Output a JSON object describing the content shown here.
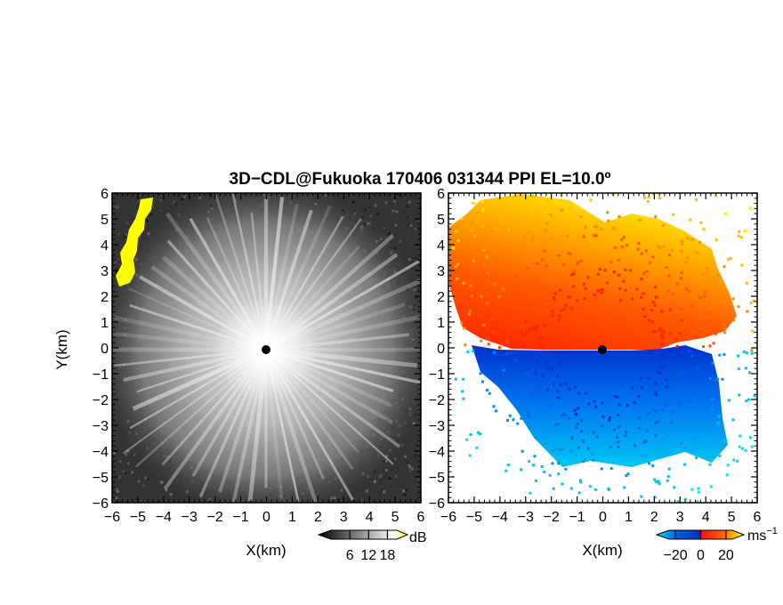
{
  "title": "3D−CDL@Fukuoka 170406 031344 PPI EL=10.0º",
  "chart_data": [
    {
      "type": "heatmap",
      "panel": "left",
      "quantity": "",
      "xlabel": "X(km)",
      "ylabel": "Y(km)",
      "xlim": [
        -6,
        6
      ],
      "ylim": [
        -6,
        6
      ],
      "x_ticks": [
        "−6",
        "−5",
        "−4",
        "−3",
        "−2",
        "−1",
        "0",
        "1",
        "2",
        "3",
        "4",
        "5",
        "6"
      ],
      "y_ticks": [
        "−6",
        "−5",
        "−4",
        "−3",
        "−2",
        "−1",
        "0",
        "1",
        "2",
        "3",
        "4",
        "5",
        "6"
      ],
      "colorbar": {
        "unit": "dB",
        "tick_labels": [
          "6",
          "12",
          "18"
        ],
        "tick_values": [
          6,
          12,
          18
        ],
        "range": [
          0,
          21
        ],
        "colors": [
          "#000000",
          "#ffffff",
          "#ffff00"
        ]
      },
      "features": [
        {
          "label": "",
          "x_range": [
            -6,
            -4.4
          ],
          "y_range": [
            2.5,
            5.9
          ],
          "value": "saturated",
          "color": "#ffff00"
        }
      ],
      "center_marker": {
        "x": 0,
        "y": 0,
        "color": "#555555"
      },
      "grid": false
    },
    {
      "type": "heatmap",
      "panel": "right",
      "quantity": "",
      "xlabel": "X(km)",
      "ylabel": "",
      "xlim": [
        -6,
        6
      ],
      "ylim": [
        -6,
        6
      ],
      "x_ticks": [
        "−6",
        "−5",
        "−4",
        "−3",
        "−2",
        "−1",
        "0",
        "1",
        "2",
        "3",
        "4",
        "5",
        "6"
      ],
      "y_ticks": [
        "−6",
        "−5",
        "−4",
        "−3",
        "−2",
        "−1",
        "0",
        "1",
        "2",
        "3",
        "4",
        "5",
        "6"
      ],
      "colorbar": {
        "unit": "ms−1",
        "tick_labels": [
          "−20",
          "0",
          "20"
        ],
        "tick_values": [
          -20,
          0,
          20
        ],
        "range": [
          -25,
          25
        ],
        "colors": [
          "#00e8f0",
          "#0060e0",
          "#0030c0",
          "#ff1010",
          "#ff6000",
          "#ffcc00",
          "#ffff40"
        ]
      },
      "regions": [
        {
          "label": "",
          "y_range": [
            0,
            6
          ],
          "value_range": [
            5,
            25
          ]
        },
        {
          "label": "",
          "y_range": [
            -5.2,
            0
          ],
          "value_range": [
            -25,
            -5
          ]
        }
      ],
      "center_marker": {
        "x": 0,
        "y": 0,
        "color": "#40e0e0"
      },
      "grid": false
    }
  ]
}
